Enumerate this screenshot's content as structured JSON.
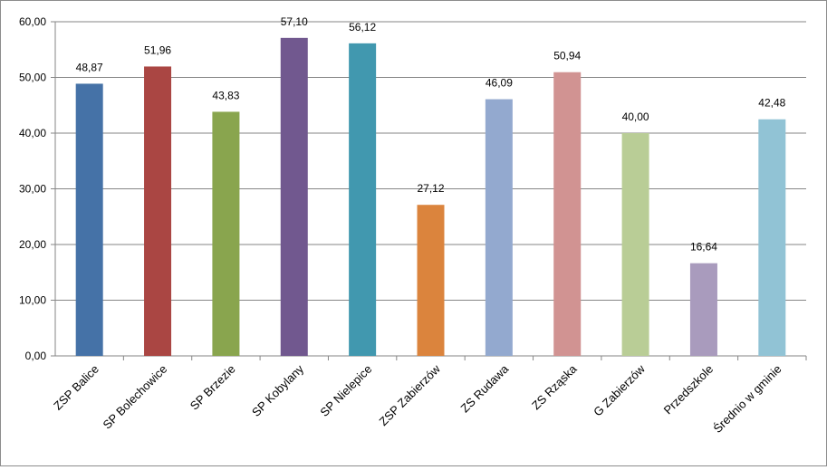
{
  "chart_data": {
    "type": "bar",
    "title": "",
    "xlabel": "",
    "ylabel": "",
    "ylim": [
      0,
      60
    ],
    "yticks": [
      "0,00",
      "10,00",
      "20,00",
      "30,00",
      "40,00",
      "50,00",
      "60,00"
    ],
    "grid": true,
    "legend": "none",
    "categories": [
      "ZSP Balice",
      "SP Bolechowice",
      "SP Brzezie",
      "SP Kobylany",
      "SP Nielepice",
      "ZSP Zabierzów",
      "ZS Rudawa",
      "ZS Rząska",
      "G Zabierzów",
      "Przedszkole",
      "Średnio w gminie"
    ],
    "values": [
      48.87,
      51.96,
      43.83,
      57.1,
      56.12,
      27.12,
      46.09,
      50.94,
      40.0,
      16.64,
      42.48
    ],
    "value_labels": [
      "48,87",
      "51,96",
      "43,83",
      "57,10",
      "56,12",
      "27,12",
      "46,09",
      "50,94",
      "40,00",
      "16,64",
      "42,48"
    ],
    "colors": [
      "#4572a7",
      "#aa4643",
      "#89a54e",
      "#71588f",
      "#4198af",
      "#db843d",
      "#93a9cf",
      "#d19392",
      "#b9cd96",
      "#a99bbd",
      "#91c3d5"
    ]
  }
}
